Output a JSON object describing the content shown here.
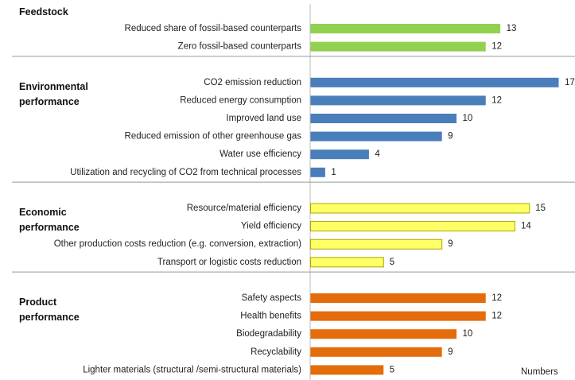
{
  "chart_data": {
    "type": "bar",
    "orientation": "horizontal",
    "x_label": "Numbers",
    "groups": [
      {
        "name": "Feedstock",
        "color": "#92d050",
        "categories": [
          "Reduced share of fossil-based counterparts",
          "Zero fossil-based counterparts"
        ],
        "values": [
          13,
          12
        ]
      },
      {
        "name": "Environmental performance",
        "color": "#4a7ebb",
        "categories": [
          "CO2 emission reduction",
          "Reduced energy consumption",
          "Improved land use",
          "Reduced emission of other greenhouse gas",
          "Water use efficiency",
          "Utilization and recycling of CO2 from technical processes"
        ],
        "values": [
          17,
          12,
          10,
          9,
          4,
          1
        ]
      },
      {
        "name": "Economic performance",
        "color": "#ffff66",
        "categories": [
          "Resource/material efficiency",
          "Yield efficiency",
          "Other production costs reduction (e.g. conversion, extraction)",
          "Transport or logistic costs reduction"
        ],
        "values": [
          15,
          14,
          9,
          5
        ]
      },
      {
        "name": "Product performance",
        "color": "#e46c0a",
        "categories": [
          "Safety aspects",
          "Health benefits",
          "Biodegradability",
          "Recyclability",
          "Lighter materials (structural /semi-structural materials)"
        ],
        "values": [
          12,
          12,
          10,
          9,
          5
        ]
      }
    ]
  }
}
